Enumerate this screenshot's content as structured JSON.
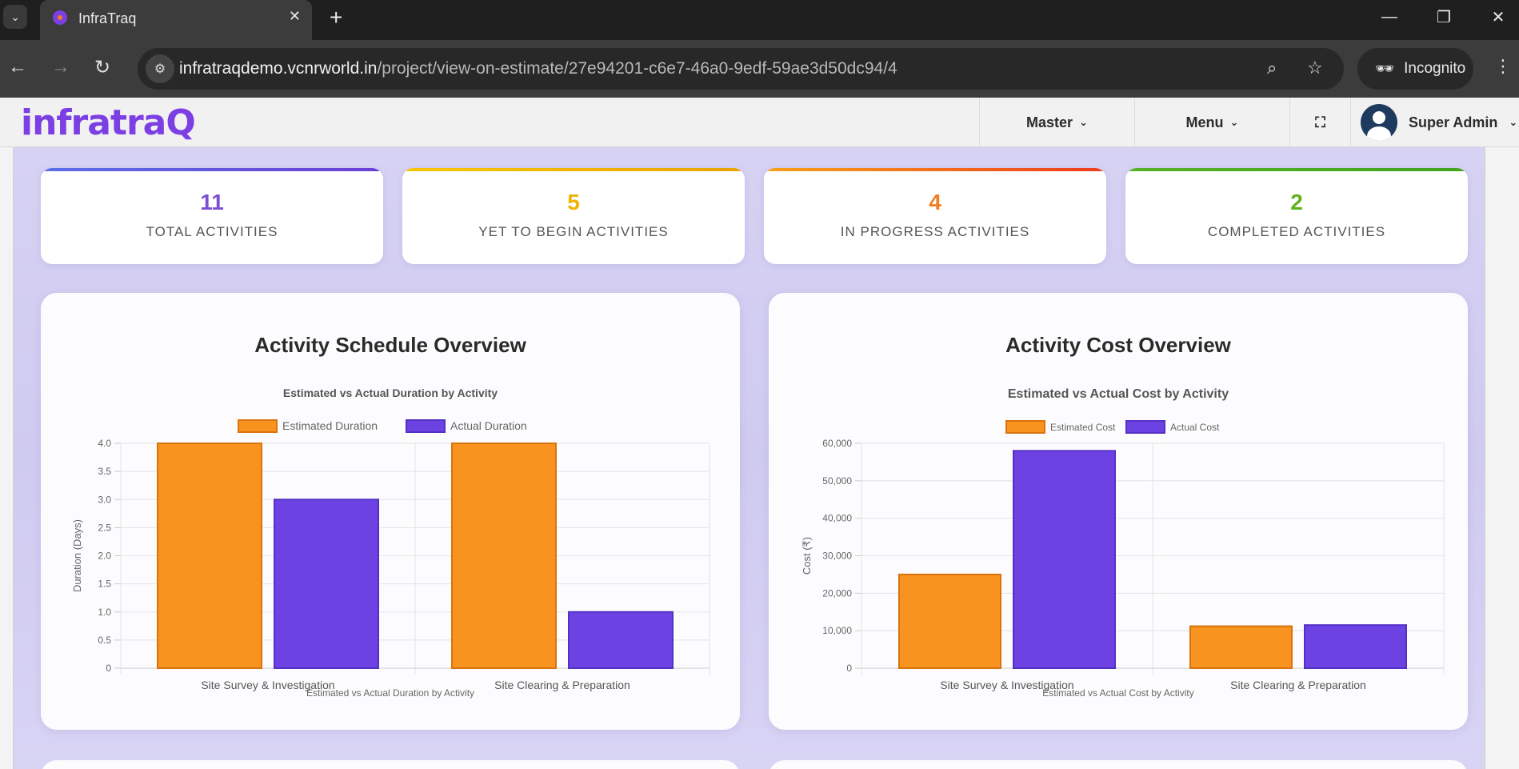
{
  "browser": {
    "tab_title": "InfraTraq",
    "url_host": "infratraqdemo.vcnrworld.in",
    "url_path": "/project/view-on-estimate/27e94201-c6e7-46a0-9edf-59ae3d50dc94/4",
    "incognito_label": "Incognito"
  },
  "header": {
    "logo_text": "infratra",
    "logo_q": "Q",
    "menu_master": "Master",
    "menu_menu": "Menu",
    "user_name": "Super Admin"
  },
  "stats": [
    {
      "value": "11",
      "label": "TOTAL ACTIVITIES",
      "color": "#7b4fd1"
    },
    {
      "value": "5",
      "label": "YET TO BEGIN ACTIVITIES",
      "color": "#f0b400"
    },
    {
      "value": "4",
      "label": "IN PROGRESS ACTIVITIES",
      "color": "#f47c20"
    },
    {
      "value": "2",
      "label": "COMPLETED ACTIVITIES",
      "color": "#5fb21e"
    }
  ],
  "colors": {
    "estimated": "#f7931e",
    "estimated_border": "#d9730d",
    "actual": "#6c42e3",
    "actual_border": "#5530c4"
  },
  "charts": {
    "schedule_card_title": "Activity Schedule Overview",
    "cost_card_title": "Activity Cost Overview"
  },
  "chart_data": [
    {
      "type": "bar",
      "title": "Estimated vs Actual Duration by Activity",
      "xlabel": "Estimated vs Actual Duration by Activity",
      "ylabel": "Duration (Days)",
      "categories": [
        "Site Survey & Investigation",
        "Site Clearing & Preparation"
      ],
      "series": [
        {
          "name": "Estimated Duration",
          "values": [
            4,
            4
          ]
        },
        {
          "name": "Actual Duration",
          "values": [
            3,
            1
          ]
        }
      ],
      "ylim": [
        0,
        4
      ],
      "yticks": [
        "0",
        "0.5",
        "1.0",
        "1.5",
        "2.0",
        "2.5",
        "3.0",
        "3.5",
        "4.0"
      ],
      "legend": "top-center",
      "grid": true
    },
    {
      "type": "bar",
      "title": "Estimated vs Actual Cost by Activity",
      "xlabel": "Estimated vs Actual Cost by Activity",
      "ylabel": "Cost (₹)",
      "categories": [
        "Site Survey & Investigation",
        "Site Clearing & Preparation"
      ],
      "series": [
        {
          "name": "Estimated Cost",
          "values": [
            25000,
            11200
          ]
        },
        {
          "name": "Actual Cost",
          "values": [
            58000,
            11500
          ]
        }
      ],
      "ylim": [
        0,
        60000
      ],
      "yticks": [
        "0",
        "10,000",
        "20,000",
        "30,000",
        "40,000",
        "50,000",
        "60,000"
      ],
      "legend": "top-center",
      "grid": true
    }
  ]
}
